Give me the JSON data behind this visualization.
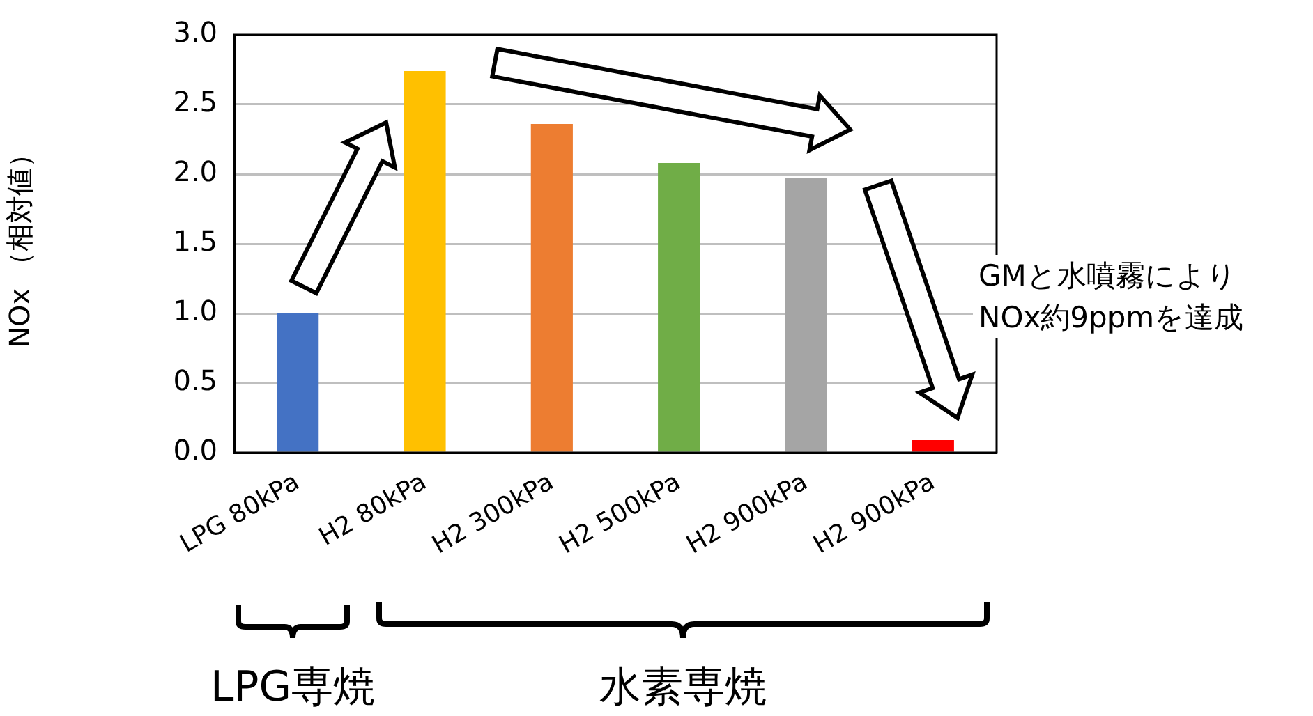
{
  "chart_data": {
    "type": "bar",
    "ylabel": "NOx （相対値）",
    "categories": [
      "LPG 80kPa",
      "H2 80kPa",
      "H2 300kPa",
      "H2 500kPa",
      "H2 900kPa",
      "H2 900kPa"
    ],
    "values": [
      1.0,
      2.74,
      2.36,
      2.08,
      1.97,
      0.09
    ],
    "colors": [
      "#4472c4",
      "#ffc000",
      "#ed7d31",
      "#70ad47",
      "#a5a5a5",
      "#ff0000"
    ],
    "ylim": [
      0,
      3.0
    ],
    "yticks": [
      {
        "value": 0,
        "label": "0.0"
      },
      {
        "value": 0.5,
        "label": "0.5"
      },
      {
        "value": 1,
        "label": "1.0"
      },
      {
        "value": 1.5,
        "label": "1.5"
      },
      {
        "value": 2,
        "label": "2.0"
      },
      {
        "value": 2.5,
        "label": "2.5"
      },
      {
        "value": 3,
        "label": "3.0"
      }
    ],
    "grid": "y",
    "legend": false,
    "annotations": [
      "GMと水噴霧により\nNOx約9ppmを達成",
      "LPG専焼",
      "水素専焼"
    ]
  }
}
